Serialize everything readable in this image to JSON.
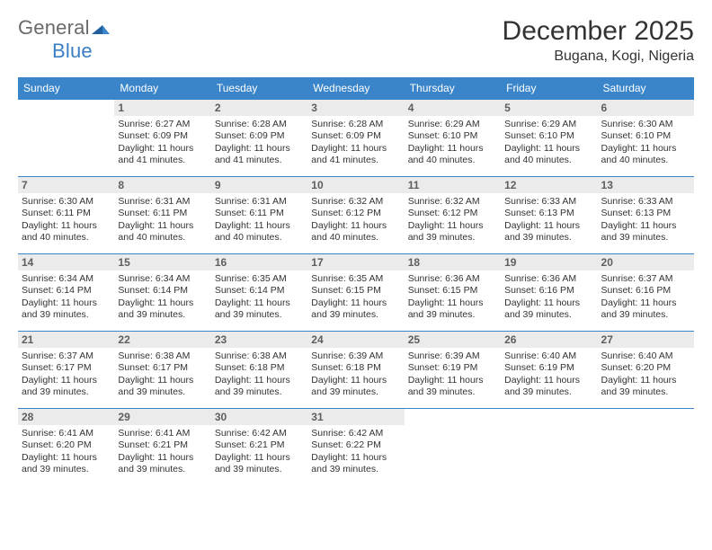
{
  "brand": {
    "left": "General",
    "right": "Blue"
  },
  "title": "December 2025",
  "location": "Bugana, Kogi, Nigeria",
  "colors": {
    "header_bg": "#3a85c9",
    "header_text": "#ffffff",
    "daynum_bg": "#ebebeb",
    "rule": "#3a85c9"
  },
  "weekdays": [
    "Sunday",
    "Monday",
    "Tuesday",
    "Wednesday",
    "Thursday",
    "Friday",
    "Saturday"
  ],
  "weeks": [
    [
      {
        "n": "",
        "sr": "",
        "ss": "",
        "dl": ""
      },
      {
        "n": "1",
        "sr": "6:27 AM",
        "ss": "6:09 PM",
        "dl": "11 hours and 41 minutes."
      },
      {
        "n": "2",
        "sr": "6:28 AM",
        "ss": "6:09 PM",
        "dl": "11 hours and 41 minutes."
      },
      {
        "n": "3",
        "sr": "6:28 AM",
        "ss": "6:09 PM",
        "dl": "11 hours and 41 minutes."
      },
      {
        "n": "4",
        "sr": "6:29 AM",
        "ss": "6:10 PM",
        "dl": "11 hours and 40 minutes."
      },
      {
        "n": "5",
        "sr": "6:29 AM",
        "ss": "6:10 PM",
        "dl": "11 hours and 40 minutes."
      },
      {
        "n": "6",
        "sr": "6:30 AM",
        "ss": "6:10 PM",
        "dl": "11 hours and 40 minutes."
      }
    ],
    [
      {
        "n": "7",
        "sr": "6:30 AM",
        "ss": "6:11 PM",
        "dl": "11 hours and 40 minutes."
      },
      {
        "n": "8",
        "sr": "6:31 AM",
        "ss": "6:11 PM",
        "dl": "11 hours and 40 minutes."
      },
      {
        "n": "9",
        "sr": "6:31 AM",
        "ss": "6:11 PM",
        "dl": "11 hours and 40 minutes."
      },
      {
        "n": "10",
        "sr": "6:32 AM",
        "ss": "6:12 PM",
        "dl": "11 hours and 40 minutes."
      },
      {
        "n": "11",
        "sr": "6:32 AM",
        "ss": "6:12 PM",
        "dl": "11 hours and 39 minutes."
      },
      {
        "n": "12",
        "sr": "6:33 AM",
        "ss": "6:13 PM",
        "dl": "11 hours and 39 minutes."
      },
      {
        "n": "13",
        "sr": "6:33 AM",
        "ss": "6:13 PM",
        "dl": "11 hours and 39 minutes."
      }
    ],
    [
      {
        "n": "14",
        "sr": "6:34 AM",
        "ss": "6:14 PM",
        "dl": "11 hours and 39 minutes."
      },
      {
        "n": "15",
        "sr": "6:34 AM",
        "ss": "6:14 PM",
        "dl": "11 hours and 39 minutes."
      },
      {
        "n": "16",
        "sr": "6:35 AM",
        "ss": "6:14 PM",
        "dl": "11 hours and 39 minutes."
      },
      {
        "n": "17",
        "sr": "6:35 AM",
        "ss": "6:15 PM",
        "dl": "11 hours and 39 minutes."
      },
      {
        "n": "18",
        "sr": "6:36 AM",
        "ss": "6:15 PM",
        "dl": "11 hours and 39 minutes."
      },
      {
        "n": "19",
        "sr": "6:36 AM",
        "ss": "6:16 PM",
        "dl": "11 hours and 39 minutes."
      },
      {
        "n": "20",
        "sr": "6:37 AM",
        "ss": "6:16 PM",
        "dl": "11 hours and 39 minutes."
      }
    ],
    [
      {
        "n": "21",
        "sr": "6:37 AM",
        "ss": "6:17 PM",
        "dl": "11 hours and 39 minutes."
      },
      {
        "n": "22",
        "sr": "6:38 AM",
        "ss": "6:17 PM",
        "dl": "11 hours and 39 minutes."
      },
      {
        "n": "23",
        "sr": "6:38 AM",
        "ss": "6:18 PM",
        "dl": "11 hours and 39 minutes."
      },
      {
        "n": "24",
        "sr": "6:39 AM",
        "ss": "6:18 PM",
        "dl": "11 hours and 39 minutes."
      },
      {
        "n": "25",
        "sr": "6:39 AM",
        "ss": "6:19 PM",
        "dl": "11 hours and 39 minutes."
      },
      {
        "n": "26",
        "sr": "6:40 AM",
        "ss": "6:19 PM",
        "dl": "11 hours and 39 minutes."
      },
      {
        "n": "27",
        "sr": "6:40 AM",
        "ss": "6:20 PM",
        "dl": "11 hours and 39 minutes."
      }
    ],
    [
      {
        "n": "28",
        "sr": "6:41 AM",
        "ss": "6:20 PM",
        "dl": "11 hours and 39 minutes."
      },
      {
        "n": "29",
        "sr": "6:41 AM",
        "ss": "6:21 PM",
        "dl": "11 hours and 39 minutes."
      },
      {
        "n": "30",
        "sr": "6:42 AM",
        "ss": "6:21 PM",
        "dl": "11 hours and 39 minutes."
      },
      {
        "n": "31",
        "sr": "6:42 AM",
        "ss": "6:22 PM",
        "dl": "11 hours and 39 minutes."
      },
      {
        "n": "",
        "sr": "",
        "ss": "",
        "dl": ""
      },
      {
        "n": "",
        "sr": "",
        "ss": "",
        "dl": ""
      },
      {
        "n": "",
        "sr": "",
        "ss": "",
        "dl": ""
      }
    ]
  ],
  "labels": {
    "sunrise": "Sunrise:",
    "sunset": "Sunset:",
    "daylight": "Daylight:"
  }
}
